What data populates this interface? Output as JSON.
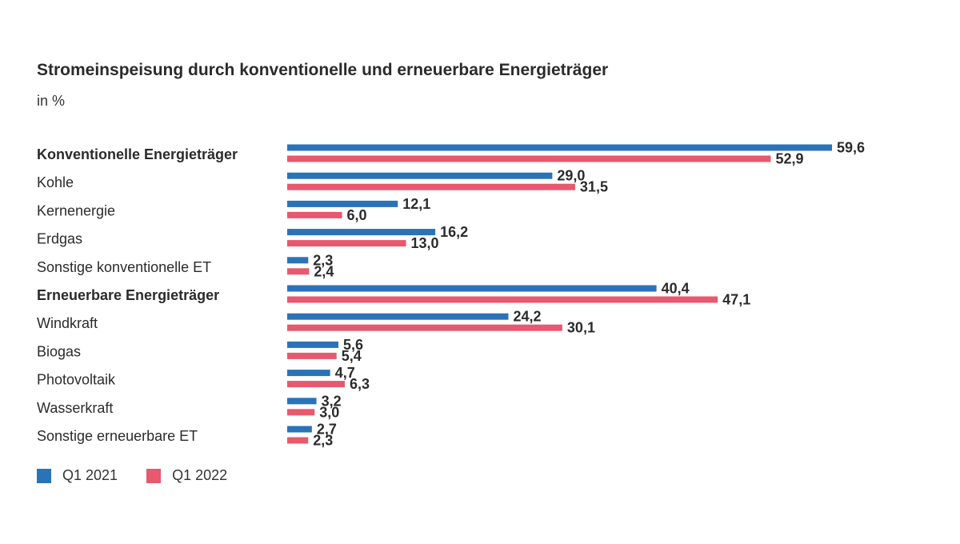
{
  "colors": {
    "series_2021": "#2a73b8",
    "series_2022": "#e8586e",
    "label_text": "#2b2b2b"
  },
  "chart_data": {
    "type": "bar",
    "orientation": "horizontal",
    "title": "Stromeinspeisung durch konventionelle und erneuerbare Energieträger",
    "subtitle": "in %",
    "categories": [
      "Konventionelle Energieträger",
      "Kohle",
      "Kernenergie",
      "Erdgas",
      "Sonstige konventionelle ET",
      "Erneuerbare Energieträger",
      "Windkraft",
      "Biogas",
      "Photovoltaik",
      "Wasserkraft",
      "Sonstige erneuerbare ET"
    ],
    "bold_categories": [
      "Konventionelle Energieträger",
      "Erneuerbare Energieträger"
    ],
    "series": [
      {
        "name": "Q1 2021",
        "values": [
          59.6,
          29.0,
          12.1,
          16.2,
          2.3,
          40.4,
          24.2,
          5.6,
          4.7,
          3.2,
          2.7
        ],
        "labels": [
          "59,6",
          "29,0",
          "12,1",
          "16,2",
          "2,3",
          "40,4",
          "24,2",
          "5,6",
          "4,7",
          "3,2",
          "2,7"
        ]
      },
      {
        "name": "Q1 2022",
        "values": [
          52.9,
          31.5,
          6.0,
          13.0,
          2.4,
          47.1,
          30.1,
          5.4,
          6.3,
          3.0,
          2.3
        ],
        "labels": [
          "52,9",
          "31,5",
          "6,0",
          "13,0",
          "2,4",
          "47,1",
          "30,1",
          "5,4",
          "6,3",
          "3,0",
          "2,3"
        ]
      }
    ],
    "xlim": [
      0,
      60
    ],
    "grid": false,
    "legend_position": "bottom-left"
  }
}
